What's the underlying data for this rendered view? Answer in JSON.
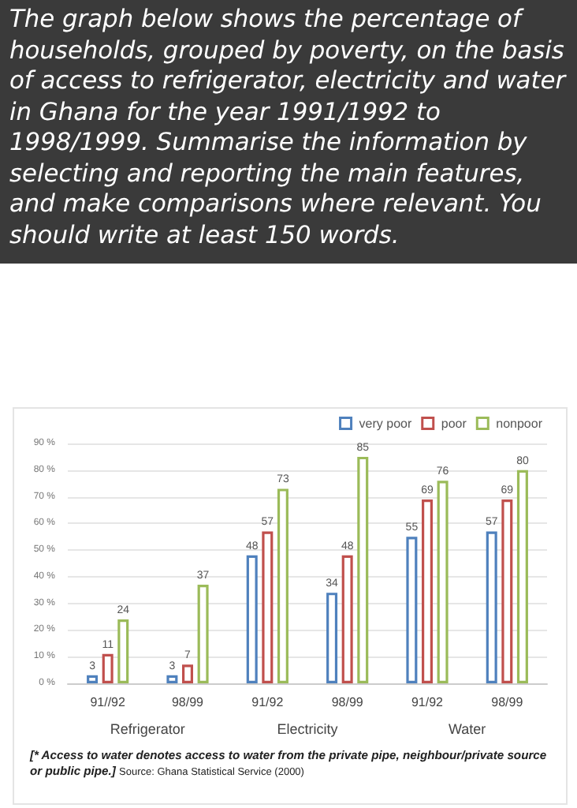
{
  "chart_data": {
    "type": "bar",
    "title": "The graph below shows the percentage of households, grouped by poverty, on the basis of access to refrigerator, electricity and water in Ghana for the year 1991/1992 to 1998/1999. Summarise the information by selecting and reporting the main features, and make comparisons where relevant. You should write at least 150 words.",
    "categories": [
      "91//92",
      "98/99",
      "91/92",
      "98/99",
      "91/92",
      "98/99"
    ],
    "series": [
      {
        "name": "very poor",
        "color": "#4f81bd",
        "values": [
          3,
          3,
          48,
          34,
          55,
          57
        ]
      },
      {
        "name": "poor",
        "color": "#c0504d",
        "values": [
          11,
          7,
          57,
          48,
          69,
          69
        ]
      },
      {
        "name": "nonpoor",
        "color": "#9bbb59",
        "values": [
          24,
          37,
          73,
          85,
          76,
          80
        ]
      }
    ],
    "ylim": [
      0,
      90
    ],
    "yticks": [
      {
        "value": 0,
        "label": "0 %"
      },
      {
        "value": 10,
        "label": "10 %"
      },
      {
        "value": 20,
        "label": "20 %"
      },
      {
        "value": 30,
        "label": "30 %"
      },
      {
        "value": 40,
        "label": "40 %"
      },
      {
        "value": 50,
        "label": "50 %"
      },
      {
        "value": 60,
        "label": "60 %"
      },
      {
        "value": 70,
        "label": "70 %"
      },
      {
        "value": 80,
        "label": "80 %"
      },
      {
        "value": 90,
        "label": "90 %"
      }
    ],
    "annotations": [
      "Refrigerator",
      "Electricity",
      "Water",
      "[* Access to water denotes access to water from the private pipe, neighbour/private source or public pipe.]",
      "Source: Ghana Statistical Service (2000)"
    ],
    "grid": "y",
    "legend": "top right",
    "data_labels": true
  }
}
